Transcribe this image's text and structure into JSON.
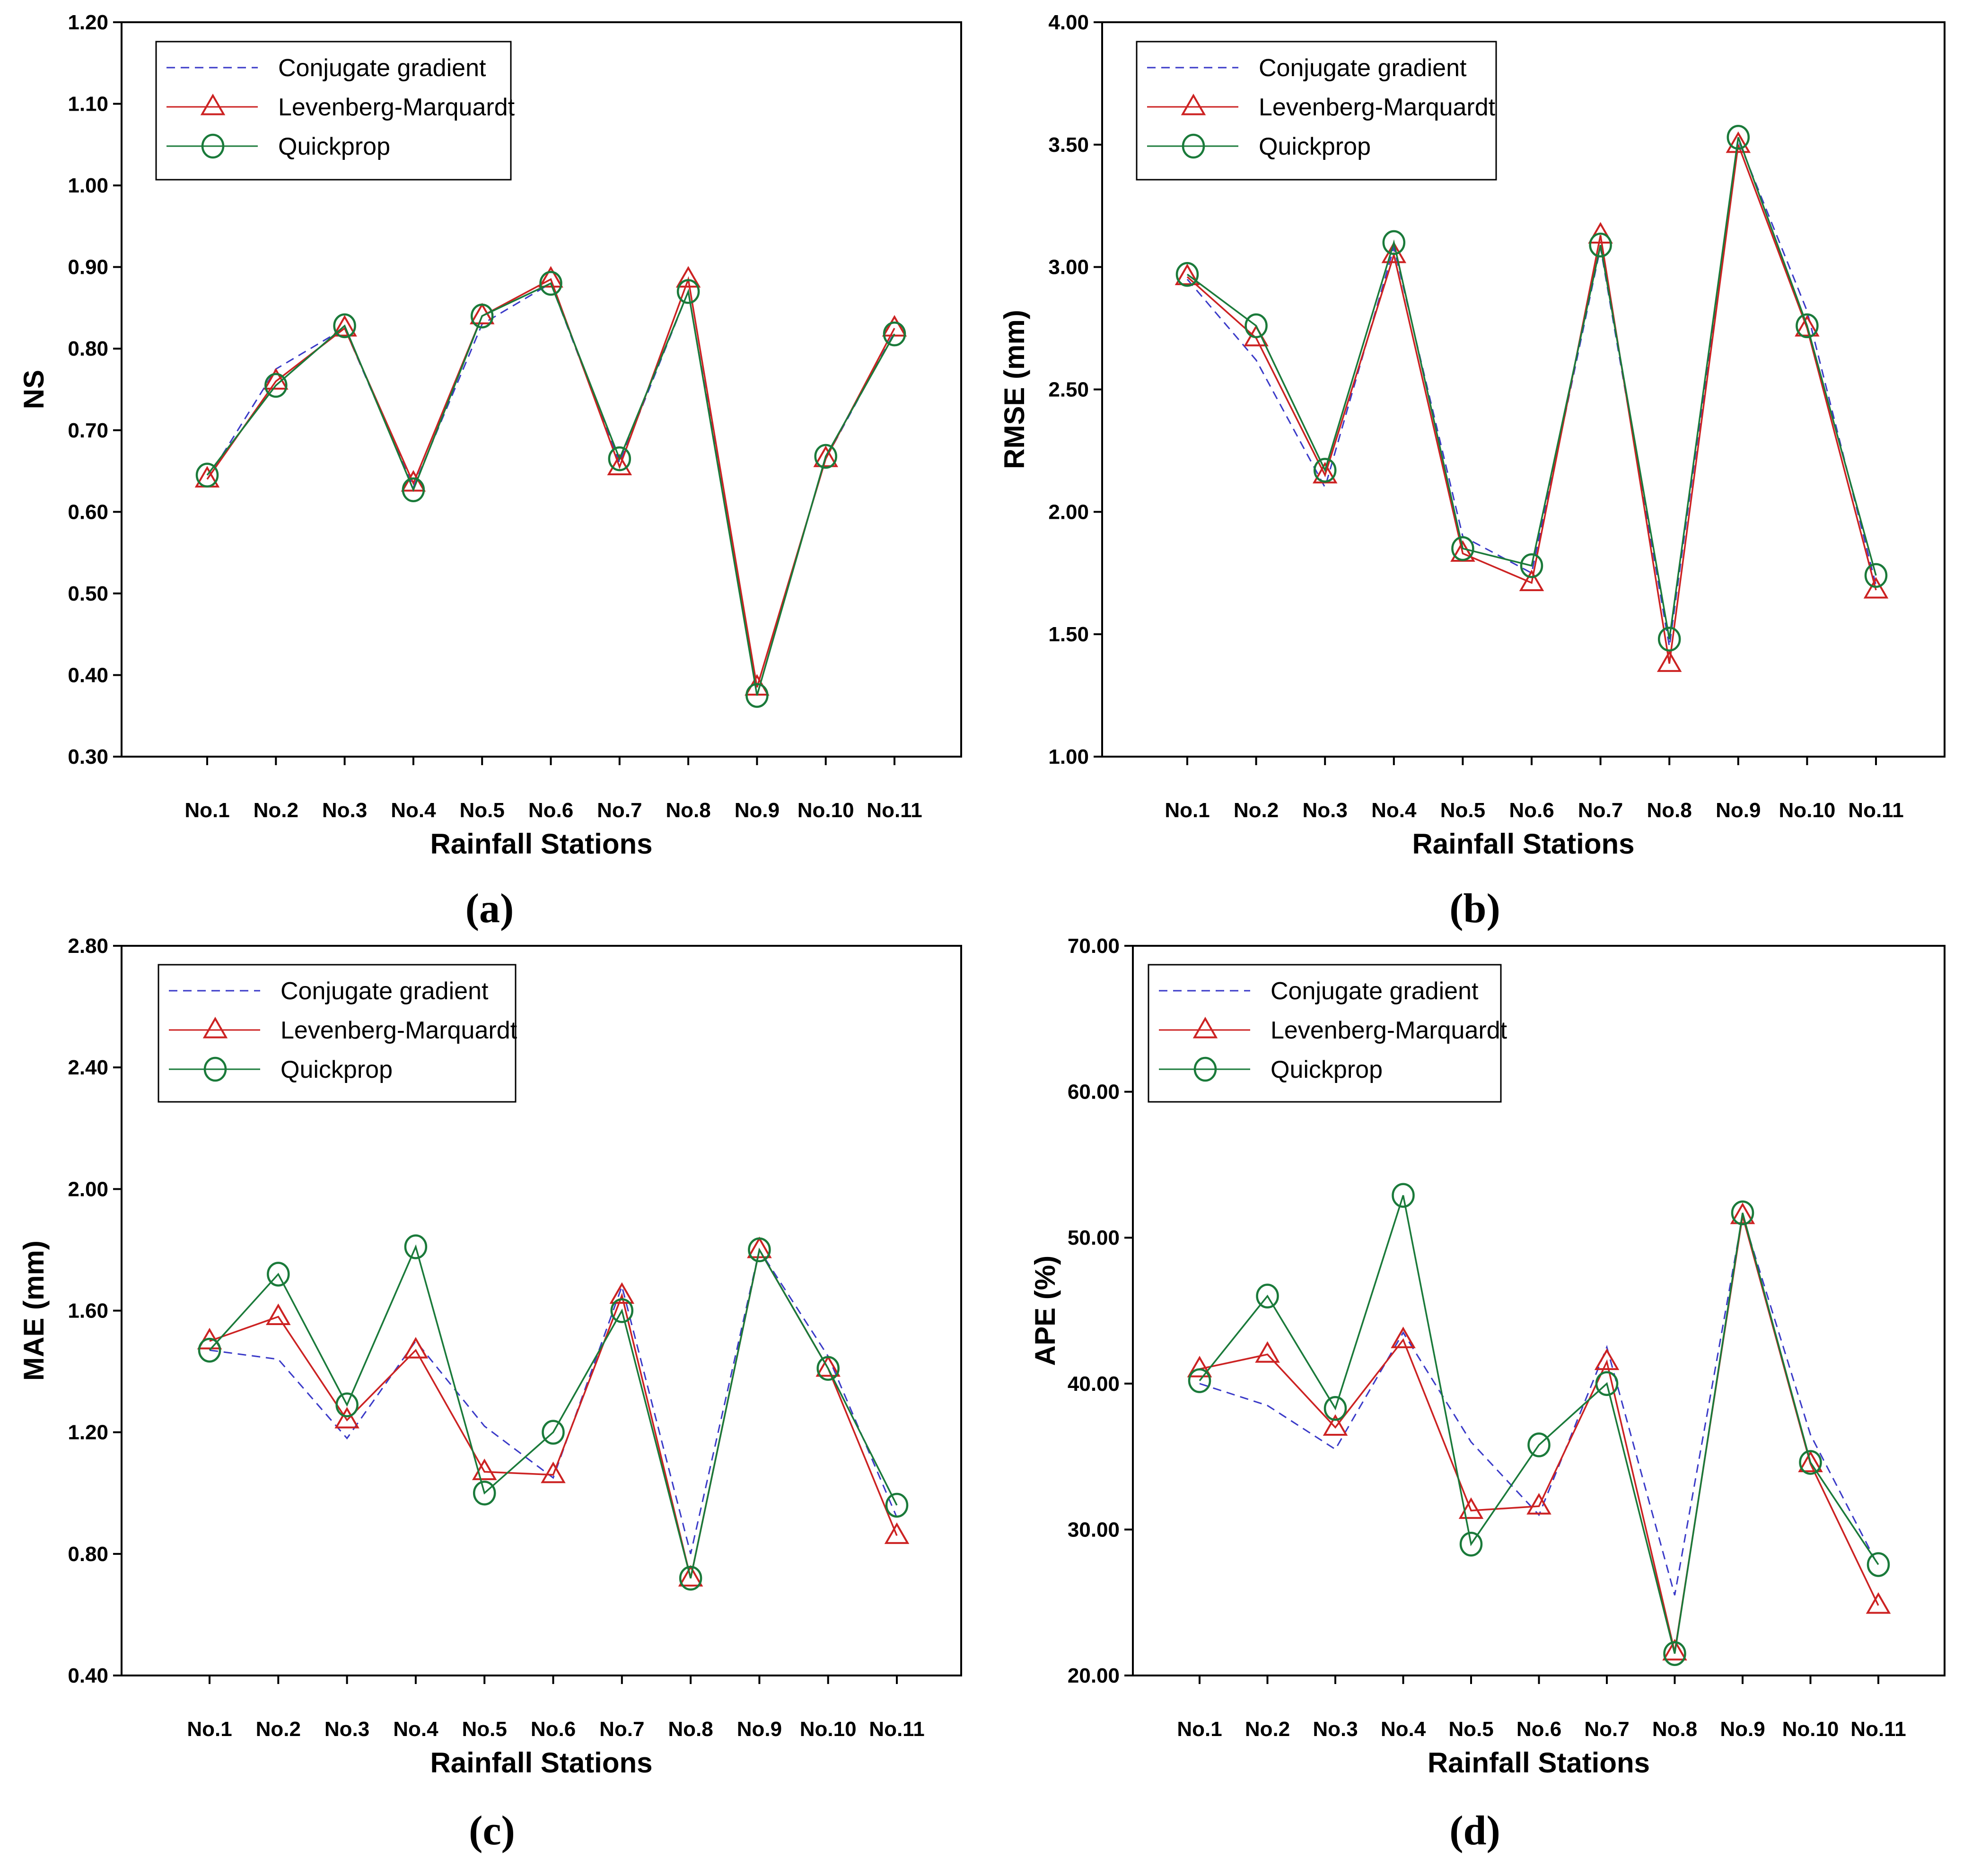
{
  "chart_data": [
    {
      "type": "line",
      "caption": "(a)",
      "categories": [
        "No.1",
        "No.2",
        "No.3",
        "No.4",
        "No.5",
        "No.6",
        "No.7",
        "No.8",
        "No.9",
        "No.10",
        "No.11"
      ],
      "xlabel": "Rainfall Stations",
      "ylabel": "NS",
      "ylim": [
        0.3,
        1.2
      ],
      "yticks": [
        "0.30",
        "0.40",
        "0.50",
        "0.60",
        "0.70",
        "0.80",
        "0.90",
        "1.00",
        "1.10",
        "1.20"
      ],
      "legend": [
        "Conjugate gradient",
        "Levenberg-Marquardt",
        "Quickprop"
      ],
      "series": [
        {
          "name": "Conjugate gradient",
          "values": [
            0.64,
            0.775,
            0.825,
            0.63,
            0.83,
            0.88,
            0.66,
            0.87,
            0.385,
            0.665,
            0.82
          ]
        },
        {
          "name": "Levenberg-Marquardt",
          "values": [
            0.64,
            0.76,
            0.825,
            0.635,
            0.84,
            0.885,
            0.655,
            0.885,
            0.385,
            0.665,
            0.825
          ]
        },
        {
          "name": "Quickprop",
          "values": [
            0.645,
            0.755,
            0.828,
            0.627,
            0.84,
            0.88,
            0.665,
            0.87,
            0.375,
            0.668,
            0.818
          ]
        }
      ]
    },
    {
      "type": "line",
      "caption": "(b)",
      "categories": [
        "No.1",
        "No.2",
        "No.3",
        "No.4",
        "No.5",
        "No.6",
        "No.7",
        "No.8",
        "No.9",
        "No.10",
        "No.11"
      ],
      "xlabel": "Rainfall Stations",
      "ylabel": "RMSE (mm)",
      "ylim": [
        1.0,
        4.0
      ],
      "yticks": [
        "1.00",
        "1.50",
        "2.00",
        "2.50",
        "3.00",
        "3.50",
        "4.00"
      ],
      "legend": [
        "Conjugate gradient",
        "Levenberg-Marquardt",
        "Quickprop"
      ],
      "series": [
        {
          "name": "Conjugate gradient",
          "values": [
            2.95,
            2.62,
            2.1,
            3.08,
            1.9,
            1.75,
            3.08,
            1.45,
            3.52,
            2.82,
            1.7
          ]
        },
        {
          "name": "Levenberg-Marquardt",
          "values": [
            2.96,
            2.71,
            2.15,
            3.05,
            1.83,
            1.71,
            3.13,
            1.38,
            3.5,
            2.75,
            1.68
          ]
        },
        {
          "name": "Quickprop",
          "values": [
            2.97,
            2.76,
            2.17,
            3.1,
            1.85,
            1.78,
            3.09,
            1.48,
            3.53,
            2.76,
            1.74
          ]
        }
      ]
    },
    {
      "type": "line",
      "caption": "(c)",
      "categories": [
        "No.1",
        "No.2",
        "No.3",
        "No.4",
        "No.5",
        "No.6",
        "No.7",
        "No.8",
        "No.9",
        "No.10",
        "No.11"
      ],
      "xlabel": "Rainfall Stations",
      "ylabel": "MAE (mm)",
      "ylim": [
        0.4,
        2.8
      ],
      "yticks": [
        "0.40",
        "0.80",
        "1.20",
        "1.60",
        "2.00",
        "2.40",
        "2.80"
      ],
      "legend": [
        "Conjugate gradient",
        "Levenberg-Marquardt",
        "Quickprop"
      ],
      "series": [
        {
          "name": "Conjugate gradient",
          "values": [
            1.47,
            1.44,
            1.18,
            1.5,
            1.22,
            1.05,
            1.68,
            0.8,
            1.8,
            1.45,
            0.92
          ]
        },
        {
          "name": "Levenberg-Marquardt",
          "values": [
            1.5,
            1.58,
            1.24,
            1.47,
            1.07,
            1.06,
            1.65,
            0.72,
            1.8,
            1.41,
            0.86
          ]
        },
        {
          "name": "Quickprop",
          "values": [
            1.47,
            1.72,
            1.29,
            1.81,
            1.0,
            1.2,
            1.6,
            0.72,
            1.8,
            1.41,
            0.96
          ]
        }
      ]
    },
    {
      "type": "line",
      "caption": "(d)",
      "categories": [
        "No.1",
        "No.2",
        "No.3",
        "No.4",
        "No.5",
        "No.6",
        "No.7",
        "No.8",
        "No.9",
        "No.10",
        "No.11"
      ],
      "xlabel": "Rainfall Stations",
      "ylabel": "APE (%)",
      "ylim": [
        20.0,
        70.0
      ],
      "yticks": [
        "20.00",
        "30.00",
        "40.00",
        "50.00",
        "60.00",
        "70.00"
      ],
      "legend": [
        "Conjugate gradient",
        "Levenberg-Marquardt",
        "Quickprop"
      ],
      "series": [
        {
          "name": "Conjugate gradient",
          "values": [
            40.0,
            38.5,
            35.5,
            43.5,
            36.0,
            31.0,
            42.5,
            25.5,
            51.5,
            36.5,
            27.5
          ]
        },
        {
          "name": "Levenberg-Marquardt",
          "values": [
            41.0,
            42.0,
            37.0,
            43.0,
            31.3,
            31.6,
            41.5,
            21.6,
            51.5,
            34.5,
            24.8
          ]
        },
        {
          "name": "Quickprop",
          "values": [
            40.2,
            46.0,
            38.3,
            52.9,
            29.0,
            35.8,
            40.0,
            21.5,
            51.7,
            34.6,
            27.6
          ]
        }
      ]
    }
  ]
}
